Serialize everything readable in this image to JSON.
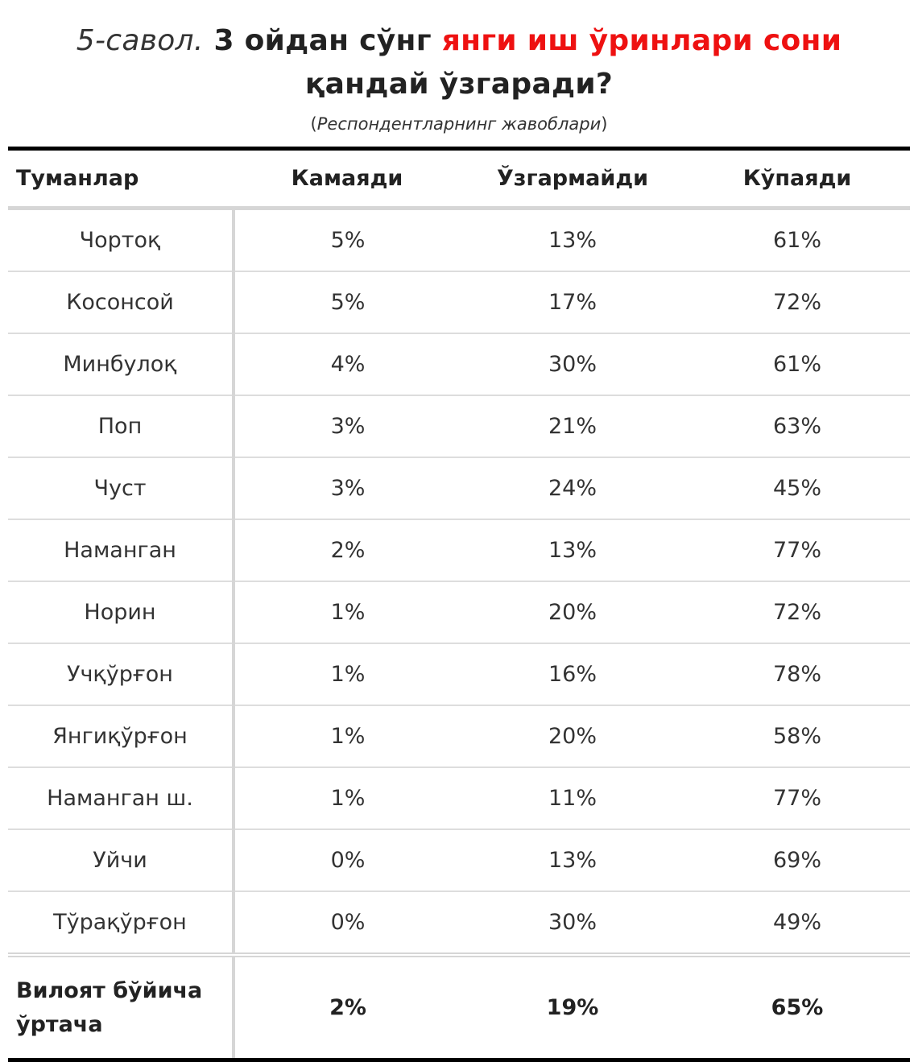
{
  "title": {
    "prefix": "5-савол.",
    "part1": " 3 ойдан сўнг ",
    "highlight": "янги иш ўринлари сони",
    "part2": " қандай ўзгаради?"
  },
  "subtitle": {
    "open": "(",
    "text": "Респондентларнинг жавоблари",
    "close": ")"
  },
  "colors": {
    "highlight": "#ee1111",
    "rule": "#000000",
    "divider": "#d6d6d6"
  },
  "table": {
    "headers": [
      "Туманлар",
      "Камаяди",
      "Ўзгармайди",
      "Кўпаяди"
    ],
    "rows": [
      [
        "Чортоқ",
        "5%",
        "13%",
        "61%"
      ],
      [
        "Косонсой",
        "5%",
        "17%",
        "72%"
      ],
      [
        "Минбулоқ",
        "4%",
        "30%",
        "61%"
      ],
      [
        "Поп",
        "3%",
        "21%",
        "63%"
      ],
      [
        "Чуст",
        "3%",
        "24%",
        "45%"
      ],
      [
        "Наманган",
        "2%",
        "13%",
        "77%"
      ],
      [
        "Норин",
        "1%",
        "20%",
        "72%"
      ],
      [
        "Учқўрғон",
        "1%",
        "16%",
        "78%"
      ],
      [
        "Янгиқўрғон",
        "1%",
        "20%",
        "58%"
      ],
      [
        "Наманган ш.",
        "1%",
        "11%",
        "77%"
      ],
      [
        "Уйчи",
        "0%",
        "13%",
        "69%"
      ],
      [
        "Тўрақўрғон",
        "0%",
        "30%",
        "49%"
      ]
    ],
    "footer": [
      "Вилоят бўйича ўртача",
      "2%",
      "19%",
      "65%"
    ]
  }
}
